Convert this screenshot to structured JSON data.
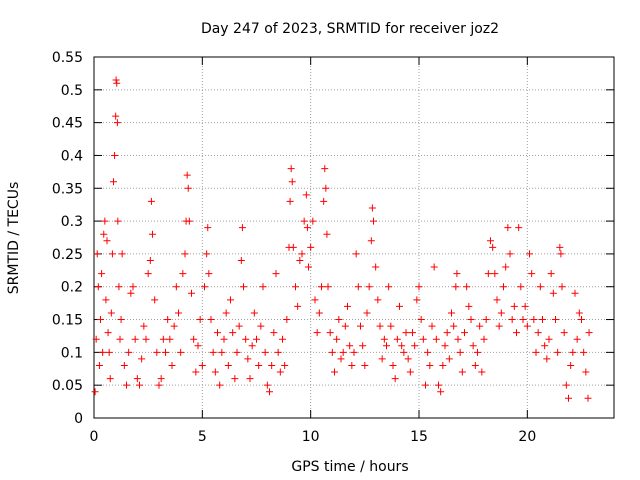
{
  "chart_data": {
    "type": "scatter",
    "title": "Day 247 of 2023, SRMTID for receiver joz2",
    "xlabel": "GPS time / hours",
    "ylabel": "SRMTID / TECUs",
    "xlim": [
      0,
      24
    ],
    "ylim": [
      0,
      0.55
    ],
    "xticks": [
      0,
      5,
      10,
      15,
      20
    ],
    "xtick_labels": [
      "0",
      "5",
      "10",
      "15",
      "20"
    ],
    "yticks": [
      0,
      0.05,
      0.1,
      0.15,
      0.2,
      0.25,
      0.3,
      0.35,
      0.4,
      0.45,
      0.5,
      0.55
    ],
    "ytick_labels": [
      "0",
      "0.05",
      "0.1",
      "0.15",
      "0.2",
      "0.25",
      "0.3",
      "0.35",
      "0.4",
      "0.45",
      "0.5",
      "0.55"
    ],
    "grid": true,
    "marker": "+",
    "colors": {
      "points": "#ff0000",
      "grid": "#a0a0a0",
      "axis": "#000000"
    },
    "series": [
      {
        "name": "SRMTID",
        "points": [
          [
            0.05,
            0.04
          ],
          [
            0.1,
            0.12
          ],
          [
            0.15,
            0.25
          ],
          [
            0.2,
            0.2
          ],
          [
            0.25,
            0.08
          ],
          [
            0.3,
            0.15
          ],
          [
            0.35,
            0.22
          ],
          [
            0.4,
            0.1
          ],
          [
            0.45,
            0.28
          ],
          [
            0.5,
            0.3
          ],
          [
            0.55,
            0.18
          ],
          [
            0.6,
            0.27
          ],
          [
            0.65,
            0.13
          ],
          [
            0.7,
            0.1
          ],
          [
            0.75,
            0.06
          ],
          [
            0.8,
            0.16
          ],
          [
            0.85,
            0.25
          ],
          [
            0.9,
            0.36
          ],
          [
            0.95,
            0.4
          ],
          [
            1.0,
            0.46
          ],
          [
            1.02,
            0.515
          ],
          [
            1.05,
            0.51
          ],
          [
            1.08,
            0.45
          ],
          [
            1.1,
            0.3
          ],
          [
            1.15,
            0.2
          ],
          [
            1.2,
            0.12
          ],
          [
            1.25,
            0.15
          ],
          [
            1.3,
            0.25
          ],
          [
            1.4,
            0.08
          ],
          [
            1.5,
            0.05
          ],
          [
            1.6,
            0.1
          ],
          [
            1.7,
            0.19
          ],
          [
            1.8,
            0.2
          ],
          [
            1.9,
            0.12
          ],
          [
            2.0,
            0.06
          ],
          [
            2.1,
            0.05
          ],
          [
            2.2,
            0.09
          ],
          [
            2.3,
            0.14
          ],
          [
            2.4,
            0.12
          ],
          [
            2.5,
            0.22
          ],
          [
            2.6,
            0.24
          ],
          [
            2.65,
            0.33
          ],
          [
            2.7,
            0.28
          ],
          [
            2.8,
            0.18
          ],
          [
            2.9,
            0.1
          ],
          [
            3.0,
            0.05
          ],
          [
            3.1,
            0.06
          ],
          [
            3.2,
            0.12
          ],
          [
            3.3,
            0.1
          ],
          [
            3.4,
            0.15
          ],
          [
            3.5,
            0.12
          ],
          [
            3.6,
            0.08
          ],
          [
            3.7,
            0.14
          ],
          [
            3.8,
            0.2
          ],
          [
            3.9,
            0.16
          ],
          [
            4.0,
            0.1
          ],
          [
            4.1,
            0.22
          ],
          [
            4.2,
            0.25
          ],
          [
            4.25,
            0.3
          ],
          [
            4.3,
            0.37
          ],
          [
            4.35,
            0.35
          ],
          [
            4.4,
            0.3
          ],
          [
            4.5,
            0.19
          ],
          [
            4.6,
            0.12
          ],
          [
            4.7,
            0.07
          ],
          [
            4.8,
            0.11
          ],
          [
            4.9,
            0.15
          ],
          [
            5.0,
            0.08
          ],
          [
            5.1,
            0.2
          ],
          [
            5.2,
            0.25
          ],
          [
            5.25,
            0.29
          ],
          [
            5.3,
            0.22
          ],
          [
            5.4,
            0.15
          ],
          [
            5.5,
            0.1
          ],
          [
            5.6,
            0.07
          ],
          [
            5.7,
            0.13
          ],
          [
            5.8,
            0.05
          ],
          [
            5.9,
            0.1
          ],
          [
            6.0,
            0.12
          ],
          [
            6.1,
            0.16
          ],
          [
            6.2,
            0.08
          ],
          [
            6.3,
            0.18
          ],
          [
            6.4,
            0.13
          ],
          [
            6.5,
            0.06
          ],
          [
            6.6,
            0.1
          ],
          [
            6.7,
            0.14
          ],
          [
            6.8,
            0.24
          ],
          [
            6.85,
            0.29
          ],
          [
            6.9,
            0.2
          ],
          [
            7.0,
            0.12
          ],
          [
            7.1,
            0.09
          ],
          [
            7.2,
            0.06
          ],
          [
            7.3,
            0.11
          ],
          [
            7.4,
            0.16
          ],
          [
            7.5,
            0.12
          ],
          [
            7.6,
            0.08
          ],
          [
            7.7,
            0.14
          ],
          [
            7.8,
            0.2
          ],
          [
            7.9,
            0.1
          ],
          [
            8.0,
            0.05
          ],
          [
            8.1,
            0.04
          ],
          [
            8.2,
            0.08
          ],
          [
            8.3,
            0.13
          ],
          [
            8.4,
            0.22
          ],
          [
            8.5,
            0.1
          ],
          [
            8.6,
            0.07
          ],
          [
            8.7,
            0.12
          ],
          [
            8.8,
            0.08
          ],
          [
            8.9,
            0.15
          ],
          [
            9.0,
            0.26
          ],
          [
            9.05,
            0.33
          ],
          [
            9.1,
            0.38
          ],
          [
            9.15,
            0.36
          ],
          [
            9.2,
            0.26
          ],
          [
            9.3,
            0.2
          ],
          [
            9.4,
            0.17
          ],
          [
            9.5,
            0.24
          ],
          [
            9.6,
            0.25
          ],
          [
            9.7,
            0.3
          ],
          [
            9.8,
            0.34
          ],
          [
            9.85,
            0.29
          ],
          [
            9.9,
            0.23
          ],
          [
            10.0,
            0.26
          ],
          [
            10.1,
            0.3
          ],
          [
            10.2,
            0.18
          ],
          [
            10.3,
            0.13
          ],
          [
            10.4,
            0.16
          ],
          [
            10.5,
            0.2
          ],
          [
            10.6,
            0.33
          ],
          [
            10.65,
            0.38
          ],
          [
            10.7,
            0.35
          ],
          [
            10.75,
            0.28
          ],
          [
            10.8,
            0.2
          ],
          [
            10.9,
            0.13
          ],
          [
            11.0,
            0.1
          ],
          [
            11.1,
            0.07
          ],
          [
            11.2,
            0.12
          ],
          [
            11.3,
            0.15
          ],
          [
            11.4,
            0.09
          ],
          [
            11.5,
            0.1
          ],
          [
            11.6,
            0.14
          ],
          [
            11.7,
            0.17
          ],
          [
            11.8,
            0.11
          ],
          [
            11.9,
            0.08
          ],
          [
            12.0,
            0.1
          ],
          [
            12.1,
            0.25
          ],
          [
            12.2,
            0.2
          ],
          [
            12.3,
            0.14
          ],
          [
            12.4,
            0.11
          ],
          [
            12.5,
            0.08
          ],
          [
            12.6,
            0.16
          ],
          [
            12.7,
            0.2
          ],
          [
            12.8,
            0.27
          ],
          [
            12.85,
            0.32
          ],
          [
            12.9,
            0.3
          ],
          [
            13.0,
            0.23
          ],
          [
            13.1,
            0.18
          ],
          [
            13.2,
            0.14
          ],
          [
            13.3,
            0.09
          ],
          [
            13.4,
            0.12
          ],
          [
            13.5,
            0.11
          ],
          [
            13.6,
            0.2
          ],
          [
            13.7,
            0.14
          ],
          [
            13.8,
            0.08
          ],
          [
            13.9,
            0.06
          ],
          [
            14.0,
            0.12
          ],
          [
            14.1,
            0.17
          ],
          [
            14.2,
            0.11
          ],
          [
            14.3,
            0.1
          ],
          [
            14.4,
            0.13
          ],
          [
            14.5,
            0.09
          ],
          [
            14.6,
            0.07
          ],
          [
            14.7,
            0.13
          ],
          [
            14.8,
            0.11
          ],
          [
            14.9,
            0.18
          ],
          [
            15.0,
            0.2
          ],
          [
            15.1,
            0.15
          ],
          [
            15.2,
            0.12
          ],
          [
            15.3,
            0.05
          ],
          [
            15.4,
            0.1
          ],
          [
            15.5,
            0.08
          ],
          [
            15.6,
            0.14
          ],
          [
            15.7,
            0.23
          ],
          [
            15.8,
            0.12
          ],
          [
            15.9,
            0.05
          ],
          [
            16.0,
            0.04
          ],
          [
            16.1,
            0.08
          ],
          [
            16.2,
            0.11
          ],
          [
            16.3,
            0.13
          ],
          [
            16.4,
            0.09
          ],
          [
            16.5,
            0.16
          ],
          [
            16.6,
            0.14
          ],
          [
            16.7,
            0.2
          ],
          [
            16.75,
            0.22
          ],
          [
            16.8,
            0.12
          ],
          [
            16.9,
            0.1
          ],
          [
            17.0,
            0.07
          ],
          [
            17.1,
            0.13
          ],
          [
            17.2,
            0.2
          ],
          [
            17.3,
            0.17
          ],
          [
            17.4,
            0.15
          ],
          [
            17.5,
            0.11
          ],
          [
            17.6,
            0.08
          ],
          [
            17.7,
            0.1
          ],
          [
            17.8,
            0.14
          ],
          [
            17.9,
            0.07
          ],
          [
            18.0,
            0.12
          ],
          [
            18.1,
            0.15
          ],
          [
            18.2,
            0.22
          ],
          [
            18.3,
            0.27
          ],
          [
            18.4,
            0.26
          ],
          [
            18.5,
            0.22
          ],
          [
            18.6,
            0.18
          ],
          [
            18.7,
            0.14
          ],
          [
            18.8,
            0.16
          ],
          [
            18.9,
            0.2
          ],
          [
            19.0,
            0.23
          ],
          [
            19.1,
            0.29
          ],
          [
            19.2,
            0.25
          ],
          [
            19.3,
            0.15
          ],
          [
            19.4,
            0.17
          ],
          [
            19.5,
            0.13
          ],
          [
            19.6,
            0.29
          ],
          [
            19.7,
            0.2
          ],
          [
            19.8,
            0.15
          ],
          [
            19.9,
            0.17
          ],
          [
            20.0,
            0.14
          ],
          [
            20.1,
            0.25
          ],
          [
            20.2,
            0.22
          ],
          [
            20.3,
            0.15
          ],
          [
            20.4,
            0.1
          ],
          [
            20.5,
            0.13
          ],
          [
            20.6,
            0.2
          ],
          [
            20.7,
            0.15
          ],
          [
            20.8,
            0.11
          ],
          [
            20.9,
            0.09
          ],
          [
            21.0,
            0.12
          ],
          [
            21.1,
            0.22
          ],
          [
            21.2,
            0.19
          ],
          [
            21.3,
            0.15
          ],
          [
            21.4,
            0.1
          ],
          [
            21.5,
            0.26
          ],
          [
            21.55,
            0.25
          ],
          [
            21.6,
            0.2
          ],
          [
            21.7,
            0.13
          ],
          [
            21.8,
            0.05
          ],
          [
            21.9,
            0.03
          ],
          [
            22.0,
            0.08
          ],
          [
            22.1,
            0.1
          ],
          [
            22.2,
            0.19
          ],
          [
            22.3,
            0.12
          ],
          [
            22.4,
            0.16
          ],
          [
            22.5,
            0.15
          ],
          [
            22.6,
            0.1
          ],
          [
            22.7,
            0.07
          ],
          [
            22.8,
            0.03
          ],
          [
            22.85,
            0.13
          ]
        ]
      }
    ]
  }
}
